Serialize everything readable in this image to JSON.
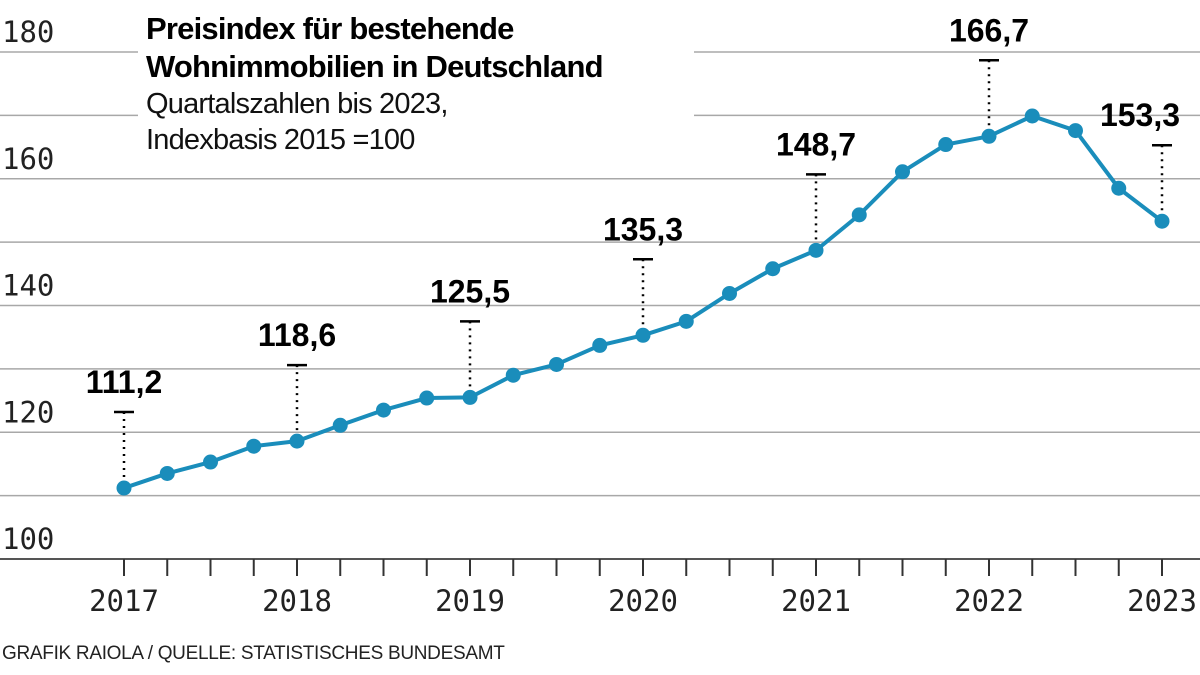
{
  "chart_data": {
    "type": "line",
    "title": "Preisindex für bestehende Wohnimmobilien in Deutschland",
    "subtitle": [
      "Quartalszahlen bis 2023,",
      "Indexbasis 2015 =100"
    ],
    "xlabel": "",
    "ylabel": "",
    "ylim": [
      100,
      180
    ],
    "yticks": [
      "100",
      "120",
      "140",
      "160",
      "180"
    ],
    "xticks": [
      "2017",
      "2018",
      "2019",
      "2020",
      "2021",
      "2022",
      "2023"
    ],
    "grid": true,
    "color": "#1a8dbb",
    "x": [
      "2017 Q1",
      "2017 Q2",
      "2017 Q3",
      "2017 Q4",
      "2018 Q1",
      "2018 Q2",
      "2018 Q3",
      "2018 Q4",
      "2019 Q1",
      "2019 Q2",
      "2019 Q3",
      "2019 Q4",
      "2020 Q1",
      "2020 Q2",
      "2020 Q3",
      "2020 Q4",
      "2021 Q1",
      "2021 Q2",
      "2021 Q3",
      "2021 Q4",
      "2022 Q1",
      "2022 Q2",
      "2022 Q3",
      "2022 Q4",
      "2023 Q1"
    ],
    "values": [
      111.2,
      113.5,
      115.3,
      117.8,
      118.6,
      121.1,
      123.5,
      125.4,
      125.5,
      129.0,
      130.7,
      133.7,
      135.3,
      137.5,
      141.9,
      145.8,
      148.7,
      154.3,
      161.1,
      165.4,
      166.7,
      169.9,
      167.6,
      158.5,
      153.3
    ],
    "annotations": [
      {
        "index": 0,
        "label": "111,2"
      },
      {
        "index": 4,
        "label": "118,6"
      },
      {
        "index": 8,
        "label": "125,5"
      },
      {
        "index": 12,
        "label": "135,3"
      },
      {
        "index": 16,
        "label": "148,7"
      },
      {
        "index": 20,
        "label": "166,7"
      },
      {
        "index": 24,
        "label": "153,3"
      }
    ]
  },
  "footer": "GRAFIK RAIOLA / QUELLE: STATISTISCHES BUNDESAMT"
}
